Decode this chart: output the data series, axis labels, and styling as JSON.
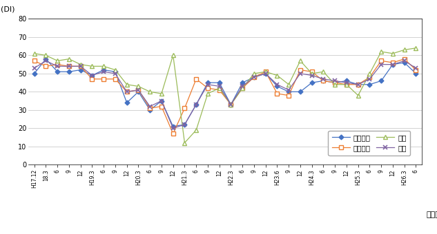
{
  "x_tick_labels": [
    "H17.12",
    "18.3",
    "6",
    "9",
    "12",
    "H19.3",
    "6",
    "9",
    "12",
    "H20.3",
    "6",
    "9",
    "12",
    "H21.3",
    "6",
    "9",
    "12",
    "H22.3",
    "6",
    "9",
    "12",
    "H23.6",
    "9",
    "12",
    "H24.3",
    "6",
    "9",
    "12",
    "H25.3",
    "6",
    "9",
    "12",
    "H26.3",
    "6"
  ],
  "kakei": [
    50,
    58,
    51,
    51,
    52,
    49,
    52,
    51,
    34,
    40,
    30,
    35,
    21,
    22,
    33,
    45,
    45,
    33,
    45,
    48,
    50,
    43,
    40,
    40,
    45,
    46,
    45,
    46,
    44,
    44,
    46,
    55,
    56,
    50
  ],
  "kigyo": [
    57,
    54,
    55,
    54,
    54,
    47,
    47,
    47,
    40,
    41,
    31,
    32,
    17,
    31,
    47,
    42,
    41,
    33,
    42,
    48,
    51,
    39,
    38,
    52,
    51,
    46,
    45,
    44,
    44,
    48,
    57,
    56,
    58,
    52
  ],
  "koyo": [
    61,
    60,
    57,
    58,
    55,
    54,
    54,
    52,
    44,
    43,
    40,
    39,
    60,
    12,
    19,
    39,
    42,
    33,
    42,
    50,
    51,
    49,
    44,
    57,
    50,
    51,
    44,
    44,
    38,
    50,
    62,
    61,
    63,
    64
  ],
  "gokei": [
    53,
    57,
    54,
    54,
    54,
    49,
    51,
    50,
    40,
    41,
    32,
    35,
    20,
    22,
    33,
    44,
    43,
    33,
    43,
    48,
    50,
    44,
    41,
    50,
    49,
    47,
    46,
    45,
    44,
    47,
    55,
    55,
    57,
    53
  ],
  "color_kakei": "#4472C4",
  "color_kigyo": "#ED7D31",
  "color_koyo": "#9BBB59",
  "color_gokei": "#8064A2",
  "ylim": [
    0,
    80
  ],
  "yticks": [
    0,
    10,
    20,
    30,
    40,
    50,
    60,
    70,
    80
  ],
  "ylabel": "(DI)",
  "xlabel": "（月）",
  "legend_kakei": "家計動向",
  "legend_kigyo": "企業動向",
  "legend_koyo": "雇用",
  "legend_gokei": "合計",
  "background_color": "#FFFFFF",
  "grid_color": "#C0C0C0"
}
